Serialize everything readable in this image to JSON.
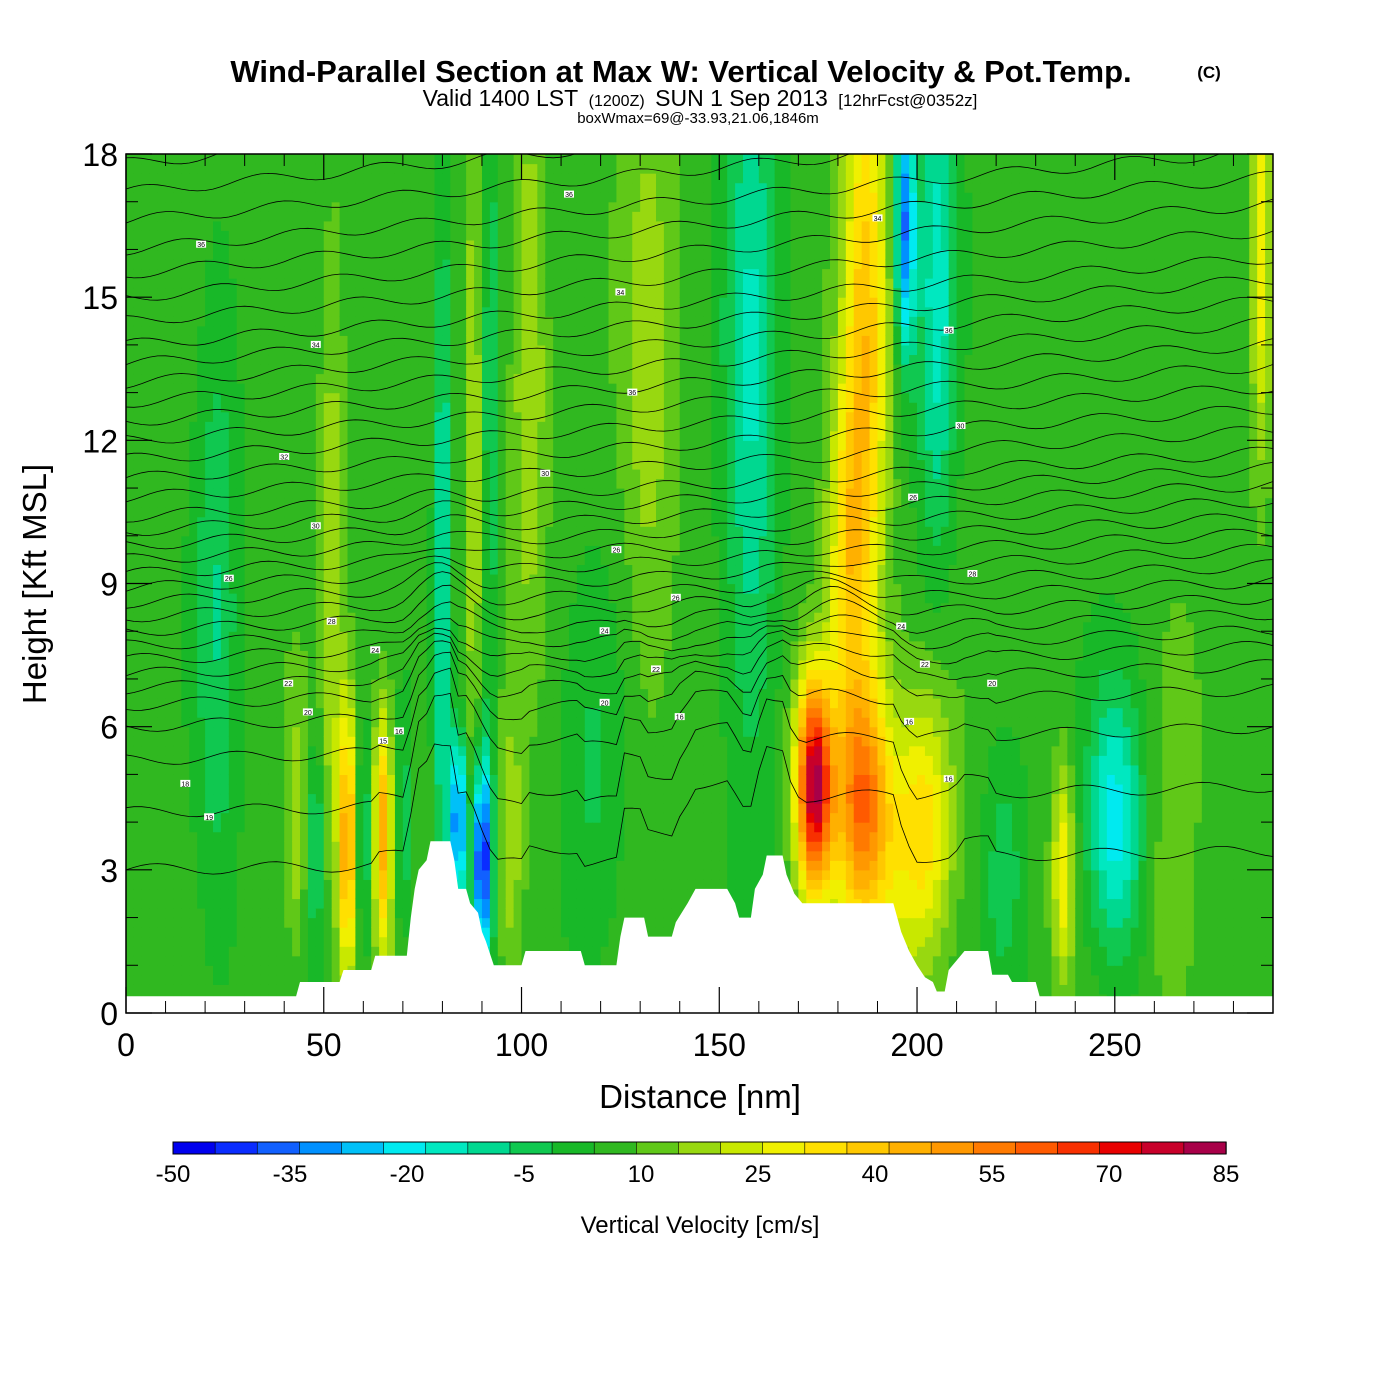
{
  "chart_data": {
    "type": "heatmap",
    "title": "Wind-Parallel Section at Max W: Vertical Velocity & Pot.Temp.",
    "title_mark": "(C)",
    "subtitle_main_a": "Valid 1400 LST",
    "subtitle_small_a": "(1200Z)",
    "subtitle_main_b": "SUN 1 Sep 2013",
    "subtitle_small_b": "[12hrFcst@0352z]",
    "subtitle2": "boxWmax=69@-33.93,21.06,1846m",
    "xlabel": "Distance [nm]",
    "ylabel": "Height [Kft MSL]",
    "xlim": [
      0,
      290
    ],
    "ylim": [
      0,
      18
    ],
    "x_ticks": [
      "0",
      "50",
      "100",
      "150",
      "200",
      "250"
    ],
    "x_tick_values": [
      0,
      50,
      100,
      150,
      200,
      250
    ],
    "y_ticks": [
      "0",
      "3",
      "6",
      "9",
      "12",
      "15",
      "18"
    ],
    "y_tick_values": [
      0,
      3,
      6,
      9,
      12,
      15,
      18
    ],
    "colorbar": {
      "label": "Vertical Velocity [cm/s]",
      "min": -50,
      "max": 85,
      "step": 5,
      "tick_labels": [
        "-50",
        "-35",
        "-20",
        "-5",
        "10",
        "25",
        "40",
        "55",
        "70",
        "85"
      ],
      "tick_values": [
        -50,
        -35,
        -20,
        -5,
        10,
        25,
        40,
        55,
        70,
        85
      ],
      "colors": [
        "#0000ee",
        "#0a2cff",
        "#1160ff",
        "#0090ff",
        "#00c0f8",
        "#00eaf0",
        "#00e8c0",
        "#00d890",
        "#10c850",
        "#18b828",
        "#30b820",
        "#60c818",
        "#98d810",
        "#c8e800",
        "#f0f000",
        "#ffe000",
        "#ffc800",
        "#ffb000",
        "#ff9800",
        "#ff7a00",
        "#ff5a00",
        "#f83000",
        "#e80000",
        "#c8002a",
        "#a80048"
      ]
    },
    "velocity_features": [
      {
        "x": 23,
        "z": 8.5,
        "sx": 4,
        "sz": 5,
        "w": -12
      },
      {
        "x": 43,
        "z": 4,
        "sx": 2,
        "sz": 1.8,
        "w": 12
      },
      {
        "x": 48,
        "z": 3.5,
        "sx": 1.6,
        "sz": 1.6,
        "w": -15
      },
      {
        "x": 56,
        "z": 3.6,
        "sx": 1.6,
        "sz": 2.0,
        "w": 38
      },
      {
        "x": 52,
        "z": 9,
        "sx": 2.2,
        "sz": 5,
        "w": 12
      },
      {
        "x": 60,
        "z": 3.6,
        "sx": 1.4,
        "sz": 1.6,
        "w": -15
      },
      {
        "x": 65,
        "z": 3.8,
        "sx": 1.7,
        "sz": 1.8,
        "w": 36
      },
      {
        "x": 70,
        "z": 3.8,
        "sx": 1.5,
        "sz": 1.6,
        "w": -12
      },
      {
        "x": 80,
        "z": 9,
        "sx": 1.4,
        "sz": 6,
        "w": -20
      },
      {
        "x": 84,
        "z": 4,
        "sx": 1.3,
        "sz": 1.3,
        "w": -42
      },
      {
        "x": 90,
        "z": 3.2,
        "sx": 1.8,
        "sz": 1.5,
        "w": -48
      },
      {
        "x": 88,
        "z": 12,
        "sx": 1.6,
        "sz": 6,
        "w": 12
      },
      {
        "x": 92,
        "z": 12,
        "sx": 1.5,
        "sz": 6,
        "w": -12
      },
      {
        "x": 97,
        "z": 3.5,
        "sx": 2.5,
        "sz": 2,
        "w": 12
      },
      {
        "x": 102,
        "z": 14,
        "sx": 3,
        "sz": 4,
        "w": 14
      },
      {
        "x": 118,
        "z": 5,
        "sx": 6,
        "sz": 3,
        "w": -8
      },
      {
        "x": 132,
        "z": 13,
        "sx": 5,
        "sz": 5,
        "w": 10
      },
      {
        "x": 158,
        "z": 13,
        "sx": 5,
        "sz": 6,
        "w": -18
      },
      {
        "x": 187,
        "z": 14,
        "sx": 4,
        "sz": 5,
        "w": 30
      },
      {
        "x": 182,
        "z": 9.5,
        "sx": 3.5,
        "sz": 2.5,
        "w": 22
      },
      {
        "x": 197,
        "z": 16.5,
        "sx": 1.8,
        "sz": 2,
        "w": -38
      },
      {
        "x": 205,
        "z": 15,
        "sx": 3.5,
        "sz": 4,
        "w": -20
      },
      {
        "x": 174,
        "z": 4.8,
        "sx": 3.2,
        "sz": 1.6,
        "w": 68
      },
      {
        "x": 186,
        "z": 4.5,
        "sx": 5,
        "sz": 1.8,
        "w": 38
      },
      {
        "x": 202,
        "z": 4,
        "sx": 5,
        "sz": 2,
        "w": 22
      },
      {
        "x": 192,
        "z": 3,
        "sx": 8,
        "sz": 2,
        "w": 10
      },
      {
        "x": 222,
        "z": 3,
        "sx": 4,
        "sz": 2,
        "w": -10
      },
      {
        "x": 237,
        "z": 3,
        "sx": 2,
        "sz": 1.6,
        "w": 22
      },
      {
        "x": 250,
        "z": 4,
        "sx": 5,
        "sz": 2,
        "w": -25
      },
      {
        "x": 265,
        "z": 3,
        "sx": 4,
        "sz": 3,
        "w": 8
      },
      {
        "x": 287,
        "z": 16,
        "sx": 1.8,
        "sz": 3,
        "w": 22
      }
    ],
    "terrain": [
      [
        0,
        0.35
      ],
      [
        43,
        0.35
      ],
      [
        44,
        0.65
      ],
      [
        49,
        0.65
      ],
      [
        54,
        0.65
      ],
      [
        55,
        0.9
      ],
      [
        62,
        0.9
      ],
      [
        63,
        1.2
      ],
      [
        71,
        1.2
      ],
      [
        72,
        2.0
      ],
      [
        73,
        2.6
      ],
      [
        74,
        3.0
      ],
      [
        76,
        3.2
      ],
      [
        77,
        3.6
      ],
      [
        82,
        3.6
      ],
      [
        83,
        3.2
      ],
      [
        84,
        2.6
      ],
      [
        86,
        2.6
      ],
      [
        87,
        2.3
      ],
      [
        89,
        2.1
      ],
      [
        90,
        1.7
      ],
      [
        91,
        1.5
      ],
      [
        93,
        1.0
      ],
      [
        100,
        1.0
      ],
      [
        101,
        1.3
      ],
      [
        115,
        1.3
      ],
      [
        116,
        1.0
      ],
      [
        124,
        1.0
      ],
      [
        125,
        1.6
      ],
      [
        126,
        2.0
      ],
      [
        131,
        2.0
      ],
      [
        132,
        1.6
      ],
      [
        138,
        1.6
      ],
      [
        139,
        1.9
      ],
      [
        142,
        2.3
      ],
      [
        144,
        2.6
      ],
      [
        152,
        2.6
      ],
      [
        154,
        2.3
      ],
      [
        155,
        2.0
      ],
      [
        158,
        2.0
      ],
      [
        159,
        2.6
      ],
      [
        161,
        2.9
      ],
      [
        162,
        3.3
      ],
      [
        166,
        3.3
      ],
      [
        167,
        2.9
      ],
      [
        169,
        2.5
      ],
      [
        171,
        2.3
      ],
      [
        194,
        2.3
      ],
      [
        195,
        2.0
      ],
      [
        196,
        1.7
      ],
      [
        198,
        1.3
      ],
      [
        200,
        1.0
      ],
      [
        202,
        0.75
      ],
      [
        204,
        0.65
      ],
      [
        205,
        0.45
      ],
      [
        207,
        0.45
      ],
      [
        208,
        0.9
      ],
      [
        209,
        1.0
      ],
      [
        210,
        1.1
      ],
      [
        212,
        1.3
      ],
      [
        218,
        1.3
      ],
      [
        219,
        0.8
      ],
      [
        223,
        0.8
      ],
      [
        224,
        0.65
      ],
      [
        230,
        0.65
      ],
      [
        231,
        0.35
      ],
      [
        290,
        0.35
      ]
    ],
    "theta_isentropes": [
      3.0,
      4.2,
      5.3,
      6.0,
      6.45,
      6.8,
      7.1,
      7.4,
      7.7,
      8.0,
      8.3,
      8.6,
      8.9,
      9.2,
      9.5,
      9.8,
      10.1,
      10.4,
      10.8,
      11.2,
      11.6,
      12.0,
      12.4,
      12.8,
      13.2,
      13.6,
      14.0,
      14.5,
      15.0,
      15.5,
      16.0,
      16.6,
      17.2,
      17.8
    ],
    "contour_labels": [
      {
        "text": "36",
        "x": 112,
        "z": 17.15
      },
      {
        "text": "36",
        "x": 19,
        "z": 16.1
      },
      {
        "text": "34",
        "x": 190,
        "z": 16.65
      },
      {
        "text": "34",
        "x": 125,
        "z": 15.1
      },
      {
        "text": "34",
        "x": 48,
        "z": 14.0
      },
      {
        "text": "36",
        "x": 208,
        "z": 14.3
      },
      {
        "text": "36",
        "x": 128,
        "z": 13.0
      },
      {
        "text": "32",
        "x": 40,
        "z": 11.65
      },
      {
        "text": "30",
        "x": 211,
        "z": 12.3
      },
      {
        "text": "30",
        "x": 106,
        "z": 11.3
      },
      {
        "text": "26",
        "x": 199,
        "z": 10.8
      },
      {
        "text": "30",
        "x": 48,
        "z": 10.2
      },
      {
        "text": "26",
        "x": 124,
        "z": 9.7
      },
      {
        "text": "26",
        "x": 26,
        "z": 9.1
      },
      {
        "text": "28",
        "x": 214,
        "z": 9.2
      },
      {
        "text": "26",
        "x": 139,
        "z": 8.7
      },
      {
        "text": "28",
        "x": 52,
        "z": 8.2
      },
      {
        "text": "24",
        "x": 196,
        "z": 8.1
      },
      {
        "text": "24",
        "x": 121,
        "z": 8.0
      },
      {
        "text": "24",
        "x": 63,
        "z": 7.6
      },
      {
        "text": "22",
        "x": 202,
        "z": 7.3
      },
      {
        "text": "22",
        "x": 134,
        "z": 7.2
      },
      {
        "text": "22",
        "x": 41,
        "z": 6.9
      },
      {
        "text": "20",
        "x": 219,
        "z": 6.9
      },
      {
        "text": "20",
        "x": 121,
        "z": 6.5
      },
      {
        "text": "20",
        "x": 46,
        "z": 6.3
      },
      {
        "text": "16",
        "x": 140,
        "z": 6.2
      },
      {
        "text": "16",
        "x": 198,
        "z": 6.1
      },
      {
        "text": "16",
        "x": 69,
        "z": 5.9
      },
      {
        "text": "15",
        "x": 65,
        "z": 5.7
      },
      {
        "text": "18",
        "x": 15,
        "z": 4.8
      },
      {
        "text": "16",
        "x": 208,
        "z": 4.9
      },
      {
        "text": "19",
        "x": 21,
        "z": 4.1
      }
    ]
  }
}
